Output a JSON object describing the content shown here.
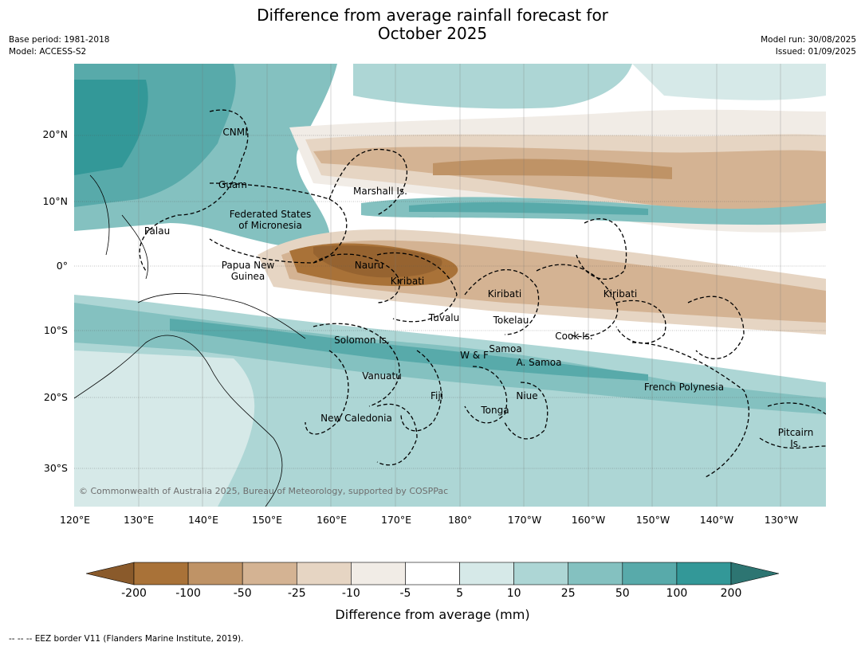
{
  "title_line1": "Difference from average rainfall forecast for",
  "title_line2": "October 2025",
  "meta_left": [
    "Base period: 1981-2018",
    "Model: ACCESS-S2"
  ],
  "meta_right": [
    "Model run: 30/08/2025",
    "Issued: 01/09/2025"
  ],
  "lat_labels": [
    "20°N",
    "10°N",
    "0°",
    "10°S",
    "20°S",
    "30°S"
  ],
  "lon_labels": [
    "120°E",
    "130°E",
    "140°E",
    "150°E",
    "160°E",
    "170°E",
    "180°",
    "170°W",
    "160°W",
    "150°W",
    "140°W",
    "130°W"
  ],
  "places": [
    "CNMI",
    "Guam",
    "Marshall Is.",
    "Federated States",
    "of Micronesia",
    "Palau",
    "Papua New",
    "Guinea",
    "Nauru",
    "Kiribati",
    "Kiribati",
    "Kiribati",
    "Tuvalu",
    "Tokelau",
    "Cook Is.",
    "Solomon Is.",
    "Samoa",
    "W & F",
    "A. Samoa",
    "Vanuatu",
    "Fiji",
    "Niue",
    "French Polynesia",
    "Tonga",
    "New Caledonia",
    "Pitcairn",
    "Is."
  ],
  "copyright": "© Commonwealth of Australia 2025, Bureau of Meteorology, supported by COSPPac",
  "colorbar": {
    "ticks": [
      "-200",
      "-100",
      "-50",
      "-25",
      "-10",
      "-5",
      "5",
      "10",
      "25",
      "50",
      "100",
      "200"
    ],
    "colors": [
      "#8a5a2b",
      "#a97238",
      "#bf9366",
      "#d4b393",
      "#e6d5c3",
      "#f1ece6",
      "#ffffff",
      "#d6e9e8",
      "#add6d5",
      "#84c1c0",
      "#58aaaa",
      "#339898",
      "#2d7572"
    ],
    "label": "Difference from average (mm)"
  },
  "footnote": "-- -- -- EEZ border V11 (Flanders Marine Institute, 2019)."
}
